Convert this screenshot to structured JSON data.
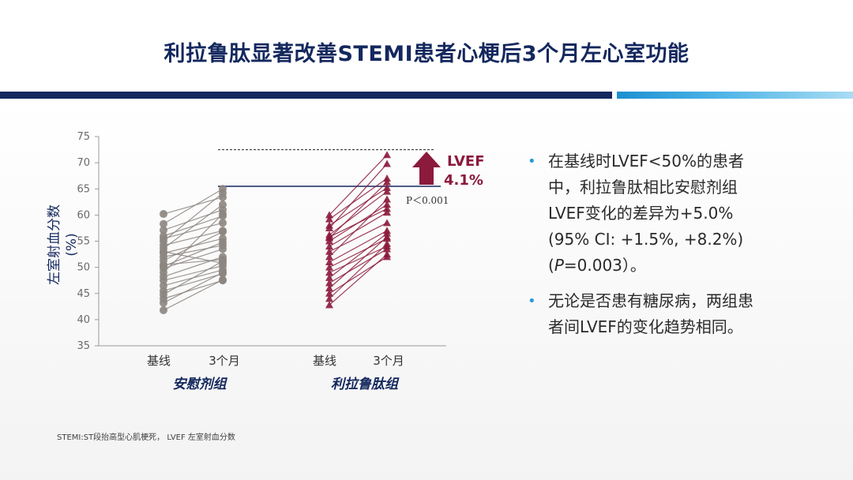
{
  "title": "利拉鲁肽显著改善STEMI患者心梗后3个月左心室功能",
  "bullets": [
    {
      "lines": [
        "在基线时LVEF<50%的患者",
        "中，利拉鲁肽相比安慰剂组",
        "LVEF变化的差异为+5.0%",
        "(95% CI: +1.5%, +8.2%)"
      ],
      "p_line": {
        "prefix": "(",
        "italic": "P",
        "suffix": "=0.003）。"
      }
    },
    {
      "lines": [
        "无论是否患有糖尿病，两组患",
        "者间LVEF的变化趋势相同。"
      ]
    }
  ],
  "footnote": "STEMI:ST段抬高型心肌梗死， LVEF 左室射血分数",
  "colors": {
    "title": "#14285e",
    "placebo": "#8c8580",
    "liraglutide": "#8b1a3c",
    "bullet_dot": "#2a9bd6",
    "arrow": "#8b1a3c"
  },
  "chart_data": {
    "type": "line",
    "ylabel": "左室射血分数\n(%)",
    "ylim": [
      35,
      75
    ],
    "yticks": [
      "35",
      "40",
      "45",
      "50",
      "55",
      "60",
      "65",
      "70",
      "75"
    ],
    "timepoints": [
      "基线",
      "3个月"
    ],
    "groups": [
      {
        "name": "安慰剂组",
        "marker": "circle",
        "pairs": [
          [
            60.2,
            63.4
          ],
          [
            58.3,
            65.0
          ],
          [
            57.1,
            61.0
          ],
          [
            56.0,
            59.8
          ],
          [
            55.5,
            58.5
          ],
          [
            54.2,
            57.0
          ],
          [
            53.6,
            62.0
          ],
          [
            52.7,
            55.5
          ],
          [
            52.0,
            54.2
          ],
          [
            51.3,
            56.8
          ],
          [
            50.5,
            51.5
          ],
          [
            49.8,
            53.5
          ],
          [
            49.0,
            60.2
          ],
          [
            48.2,
            52.0
          ],
          [
            47.5,
            50.3
          ],
          [
            46.5,
            49.5
          ],
          [
            45.5,
            48.8
          ],
          [
            44.8,
            51.2
          ],
          [
            44.0,
            47.5
          ],
          [
            43.2,
            49.0
          ],
          [
            41.8,
            47.6
          ],
          [
            55.0,
            64.2
          ],
          [
            53.0,
            50.8
          ],
          [
            50.2,
            54.8
          ]
        ]
      },
      {
        "name": "利拉鲁肽组",
        "marker": "triangle",
        "pairs": [
          [
            60.0,
            71.5
          ],
          [
            59.2,
            67.0
          ],
          [
            57.5,
            69.8
          ],
          [
            56.2,
            64.5
          ],
          [
            55.6,
            66.3
          ],
          [
            55.0,
            62.0
          ],
          [
            54.0,
            60.5
          ],
          [
            53.0,
            58.5
          ],
          [
            52.0,
            63.0
          ],
          [
            51.0,
            57.0
          ],
          [
            50.0,
            55.5
          ],
          [
            49.0,
            54.0
          ],
          [
            48.0,
            56.5
          ],
          [
            47.0,
            53.5
          ],
          [
            46.0,
            55.8
          ],
          [
            45.0,
            52.0
          ],
          [
            44.0,
            54.5
          ],
          [
            42.8,
            52.5
          ],
          [
            58.0,
            65.2
          ],
          [
            55.8,
            61.2
          ]
        ]
      }
    ],
    "reference_lines": {
      "dashed": 72.5,
      "solid": 65.5
    },
    "annotation": {
      "label": "LVEF",
      "value": "4.1%",
      "p_text": "P＜0.001"
    }
  }
}
